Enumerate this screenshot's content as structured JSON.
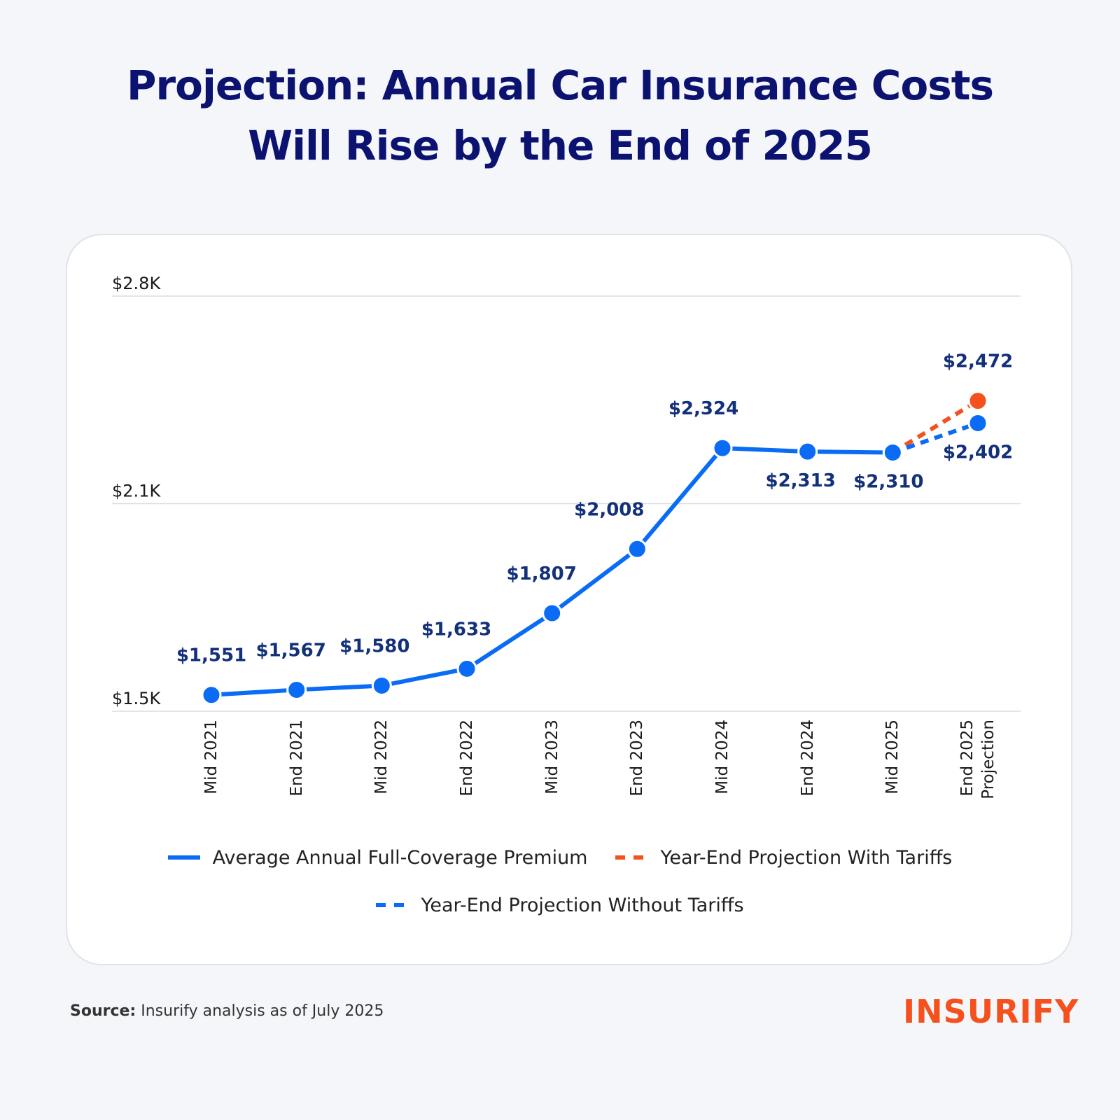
{
  "chart_data": {
    "type": "line",
    "title": "Projection: Annual Car Insurance Costs",
    "title_line2": "Will Rise by the End of 2025",
    "categories": [
      "Mid 2021",
      "End 2021",
      "Mid 2022",
      "End 2022",
      "Mid 2023",
      "End 2023",
      "Mid 2024",
      "End 2024",
      "Mid 2025",
      "End 2025 Projection"
    ],
    "series": [
      {
        "name": "Average Annual Full-Coverage Premium",
        "color": "#0a6cf5",
        "dashed": false,
        "values": [
          1551,
          1567,
          1580,
          1633,
          1807,
          2008,
          2324,
          2313,
          2310,
          null
        ],
        "value_labels": [
          "$1,551",
          "$1,567",
          "$1,580",
          "$1,633",
          "$1,807",
          "$2,008",
          "$2,324",
          "$2,313",
          "$2,310",
          null
        ]
      },
      {
        "name": "Year-End Projection With Tariffs",
        "color": "#f4511e",
        "dashed": true,
        "values": [
          null,
          null,
          null,
          null,
          null,
          null,
          null,
          null,
          null,
          2472
        ],
        "value_labels": [
          null,
          null,
          null,
          null,
          null,
          null,
          null,
          null,
          null,
          "$2,472"
        ]
      },
      {
        "name": "Year-End Projection Without Tariffs",
        "color": "#0a6cf5",
        "dashed": true,
        "values": [
          null,
          null,
          null,
          null,
          null,
          null,
          null,
          null,
          null,
          2402
        ],
        "value_labels": [
          null,
          null,
          null,
          null,
          null,
          null,
          null,
          null,
          null,
          "$2,402"
        ]
      }
    ],
    "ylim": [
      1500,
      2800
    ],
    "yticks": [
      {
        "value": 1500,
        "label": "$1.5K"
      },
      {
        "value": 2150,
        "label": "$2.1K"
      },
      {
        "value": 2800,
        "label": "$2.8K"
      }
    ],
    "grid": true,
    "source_label": "Source:",
    "source": "Insurify analysis as of July 2025",
    "logo": "INSURIFY"
  }
}
